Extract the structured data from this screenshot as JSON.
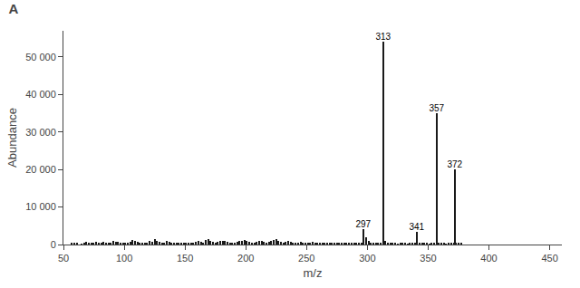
{
  "chart_data": {
    "type": "bar",
    "title": "A",
    "x_label": "m/z",
    "y_label": "Abundance",
    "xlim": [
      50,
      460
    ],
    "ylim": [
      0,
      57000
    ],
    "xticks": [
      50,
      100,
      150,
      200,
      250,
      300,
      350,
      400,
      450
    ],
    "yticks": [
      0,
      {
        "value": 10000,
        "label": "10 000"
      },
      {
        "value": 20000,
        "label": "20 000"
      },
      {
        "value": 30000,
        "label": "30 000"
      },
      {
        "value": 40000,
        "label": "40 000"
      },
      {
        "value": 50000,
        "label": "50 000"
      }
    ],
    "grid": false,
    "series": [
      {
        "color": "#1a1a1a",
        "x": [
          57,
          59,
          61,
          65,
          67,
          69,
          71,
          73,
          75,
          77,
          79,
          81,
          83,
          85,
          87,
          89,
          91,
          93,
          95,
          97,
          99,
          101,
          103,
          105,
          107,
          109,
          111,
          113,
          115,
          117,
          119,
          121,
          123,
          125,
          127,
          129,
          131,
          133,
          135,
          137,
          139,
          141,
          143,
          145,
          147,
          149,
          151,
          153,
          155,
          157,
          159,
          161,
          163,
          165,
          167,
          169,
          171,
          173,
          175,
          177,
          179,
          181,
          183,
          185,
          187,
          189,
          191,
          193,
          195,
          197,
          199,
          201,
          203,
          205,
          207,
          209,
          211,
          213,
          215,
          217,
          219,
          221,
          223,
          225,
          227,
          229,
          231,
          233,
          235,
          237,
          239,
          241,
          243,
          245,
          247,
          249,
          251,
          253,
          255,
          257,
          259,
          261,
          263,
          265,
          267,
          269,
          271,
          273,
          275,
          277,
          279,
          281,
          283,
          285,
          287,
          289,
          291,
          293,
          295,
          299,
          301,
          303,
          305,
          307,
          309,
          311,
          315,
          317,
          319,
          321,
          323,
          325,
          327,
          329,
          331,
          333,
          335,
          337,
          339,
          343,
          345,
          347,
          349,
          351,
          353,
          355,
          359,
          361,
          363,
          365,
          367,
          369,
          371,
          373,
          375,
          377
        ],
        "values": [
          350,
          500,
          250,
          200,
          450,
          750,
          550,
          380,
          280,
          650,
          480,
          580,
          680,
          380,
          460,
          280,
          850,
          780,
          680,
          560,
          480,
          380,
          280,
          750,
          1150,
          850,
          680,
          480,
          380,
          280,
          380,
          850,
          680,
          1350,
          1050,
          780,
          580,
          480,
          850,
          680,
          480,
          380,
          280,
          480,
          380,
          580,
          380,
          280,
          480,
          580,
          780,
          980,
          680,
          480,
          1150,
          1350,
          1050,
          780,
          580,
          680,
          880,
          1080,
          880,
          680,
          480,
          380,
          580,
          680,
          880,
          1080,
          1280,
          980,
          780,
          580,
          480,
          680,
          880,
          1080,
          780,
          580,
          680,
          880,
          1180,
          1380,
          1080,
          780,
          580,
          680,
          880,
          680,
          480,
          380,
          580,
          780,
          580,
          380,
          280,
          480,
          680,
          480,
          380,
          580,
          380,
          280,
          380,
          580,
          480,
          380,
          280,
          380,
          580,
          480,
          380,
          280,
          480,
          580,
          380,
          280,
          580,
          1900,
          850,
          480,
          380,
          280,
          380,
          580,
          950,
          480,
          280,
          380,
          280,
          200,
          280,
          380,
          280,
          200,
          280,
          380,
          280,
          380,
          280,
          380,
          280,
          200,
          280,
          380,
          480,
          380,
          280,
          200,
          280,
          380,
          280,
          580,
          380,
          280
        ]
      },
      {
        "color": "#1a1a1a",
        "x": [
          297,
          313,
          341,
          357,
          372
        ],
        "values": [
          4100,
          54000,
          3500,
          35000,
          20000
        ],
        "labels": [
          "297",
          "313",
          "341",
          "357",
          "372"
        ]
      }
    ]
  }
}
